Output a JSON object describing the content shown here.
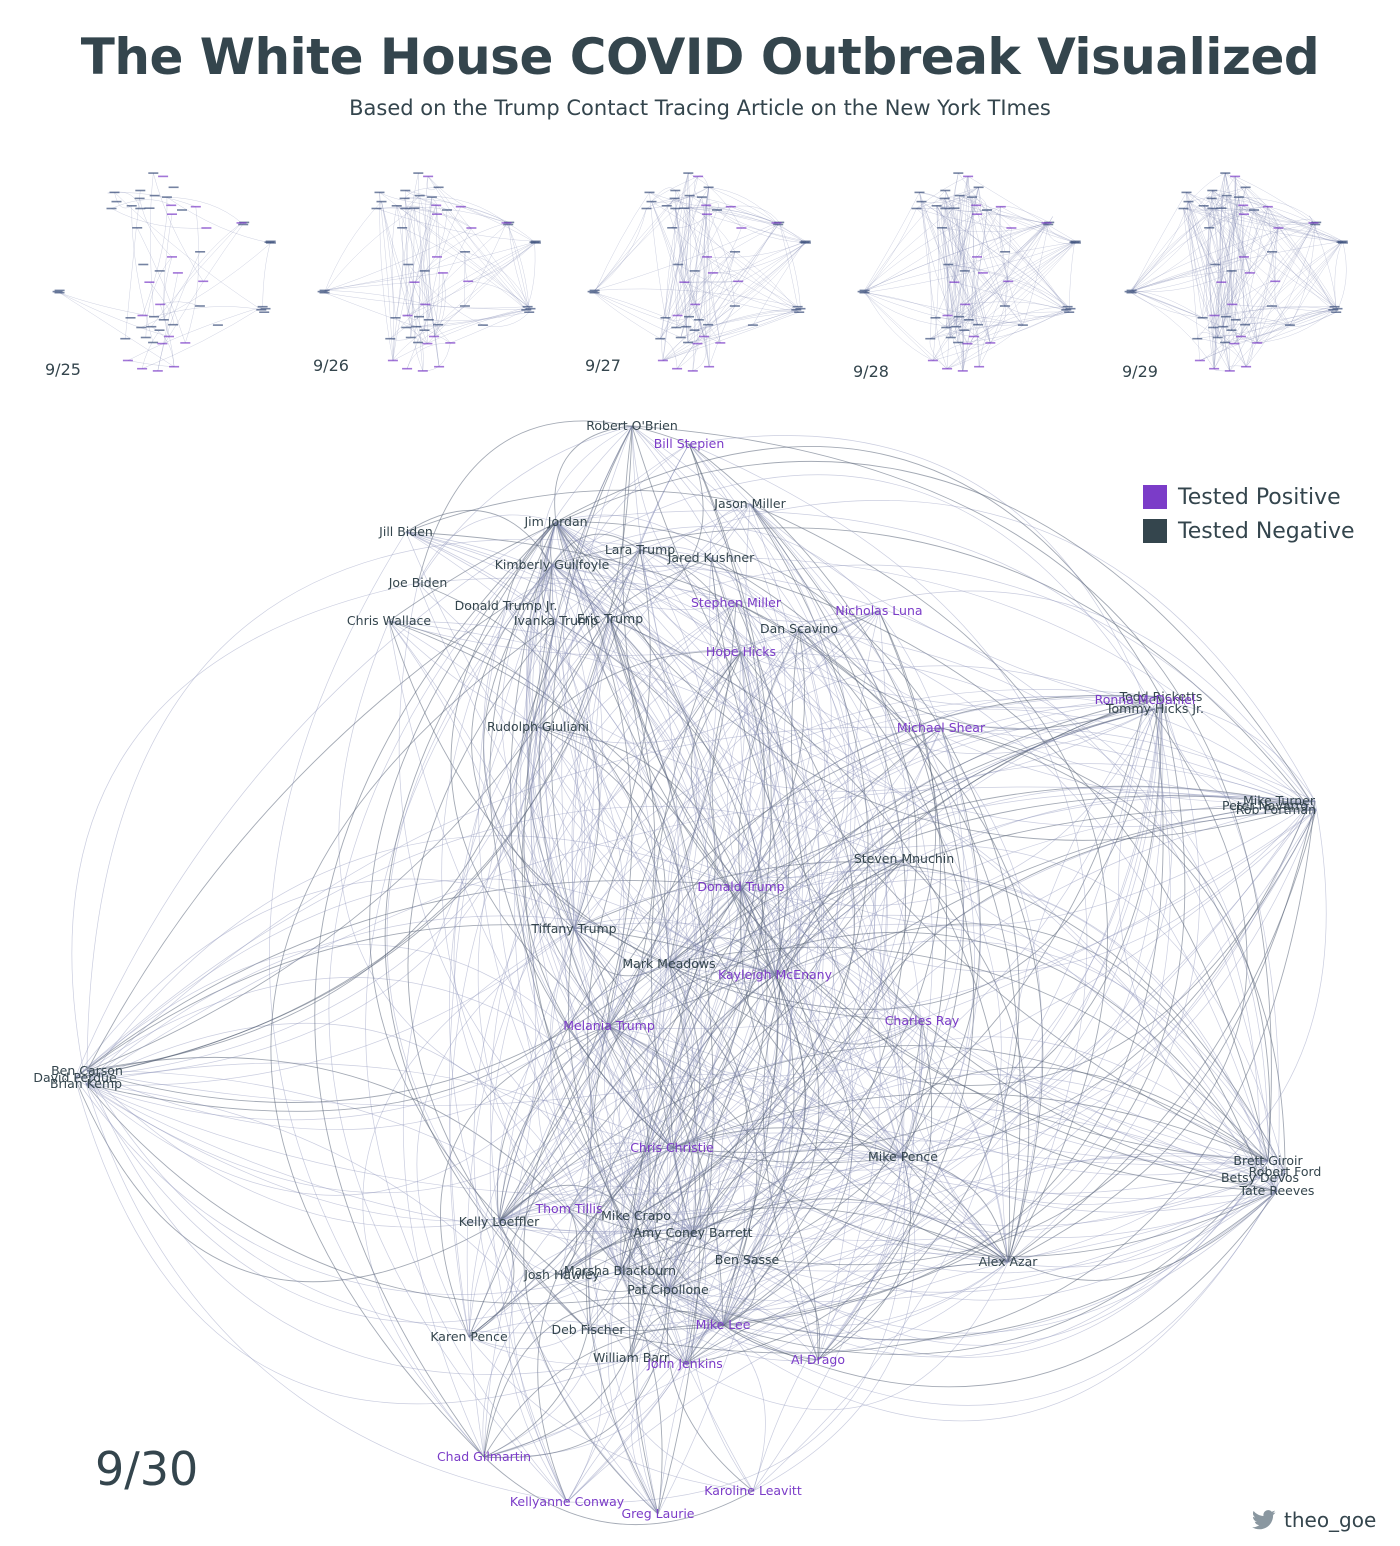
{
  "title": "The White House COVID Outbreak Visualized",
  "subtitle": "Based on the Trump Contact Tracing Article on the New York TImes",
  "colors": {
    "positive": "#7b3cc8",
    "negative": "#34454d",
    "edge": "#8a90b8",
    "text": "#34454d"
  },
  "legend": {
    "positive_label": "Tested Positive",
    "negative_label": "Tested Negative"
  },
  "thumbnails": [
    {
      "date": "9/25"
    },
    {
      "date": "9/26"
    },
    {
      "date": "9/27"
    },
    {
      "date": "9/28"
    },
    {
      "date": "9/29"
    }
  ],
  "main_date": "9/30",
  "credit": {
    "icon": "twitter-icon",
    "handle": "theo_goe"
  },
  "graph": {
    "nodes": [
      {
        "id": "Robert O'Brien",
        "status": "negative"
      },
      {
        "id": "Bill Stepien",
        "status": "positive"
      },
      {
        "id": "Jason Miller",
        "status": "negative"
      },
      {
        "id": "Jill Biden",
        "status": "negative"
      },
      {
        "id": "Jim Jordan",
        "status": "negative"
      },
      {
        "id": "Lara Trump",
        "status": "negative"
      },
      {
        "id": "Jared Kushner",
        "status": "negative"
      },
      {
        "id": "Kimberly Guilfoyle",
        "status": "negative"
      },
      {
        "id": "Joe Biden",
        "status": "negative"
      },
      {
        "id": "Donald Trump Jr.",
        "status": "negative"
      },
      {
        "id": "Ivanka Trump",
        "status": "negative"
      },
      {
        "id": "Eric Trump",
        "status": "negative"
      },
      {
        "id": "Stephen Miller",
        "status": "positive"
      },
      {
        "id": "Nicholas Luna",
        "status": "positive"
      },
      {
        "id": "Chris Wallace",
        "status": "negative"
      },
      {
        "id": "Dan Scavino",
        "status": "negative"
      },
      {
        "id": "Hope Hicks",
        "status": "positive"
      },
      {
        "id": "Todd Ricketts",
        "status": "negative"
      },
      {
        "id": "Ronna McDaniel",
        "status": "positive"
      },
      {
        "id": "Tommy Hicks Jr.",
        "status": "negative"
      },
      {
        "id": "Rudolph Giuliani",
        "status": "negative"
      },
      {
        "id": "Michael Shear",
        "status": "positive"
      },
      {
        "id": "Mike Turner",
        "status": "negative"
      },
      {
        "id": "Peter Navarro",
        "status": "negative"
      },
      {
        "id": "Rob Portman",
        "status": "negative"
      },
      {
        "id": "Steven Mnuchin",
        "status": "negative"
      },
      {
        "id": "Donald Trump",
        "status": "positive"
      },
      {
        "id": "Tiffany Trump",
        "status": "negative"
      },
      {
        "id": "Mark Meadows",
        "status": "negative"
      },
      {
        "id": "Kayleigh McEnany",
        "status": "positive"
      },
      {
        "id": "Charles Ray",
        "status": "positive"
      },
      {
        "id": "Melania Trump",
        "status": "positive"
      },
      {
        "id": "Ben Carson",
        "status": "negative"
      },
      {
        "id": "David Perdue",
        "status": "negative"
      },
      {
        "id": "Brian Kemp",
        "status": "negative"
      },
      {
        "id": "Chris Christie",
        "status": "positive"
      },
      {
        "id": "Mike Pence",
        "status": "negative"
      },
      {
        "id": "Brett Giroir",
        "status": "negative"
      },
      {
        "id": "Robert Ford",
        "status": "negative"
      },
      {
        "id": "Betsy DeVos",
        "status": "negative"
      },
      {
        "id": "Tate Reeves",
        "status": "negative"
      },
      {
        "id": "Thom Tillis",
        "status": "positive"
      },
      {
        "id": "Kelly Loeffler",
        "status": "negative"
      },
      {
        "id": "Mike Crapo",
        "status": "negative"
      },
      {
        "id": "Amy Coney Barrett",
        "status": "negative"
      },
      {
        "id": "Ben Sasse",
        "status": "negative"
      },
      {
        "id": "Alex Azar",
        "status": "negative"
      },
      {
        "id": "Josh Hawley",
        "status": "negative"
      },
      {
        "id": "Marsha Blackburn",
        "status": "negative"
      },
      {
        "id": "Pat Cipollone",
        "status": "negative"
      },
      {
        "id": "Karen Pence",
        "status": "negative"
      },
      {
        "id": "Deb Fischer",
        "status": "negative"
      },
      {
        "id": "Mike Lee",
        "status": "positive"
      },
      {
        "id": "William Barr",
        "status": "negative"
      },
      {
        "id": "John Jenkins",
        "status": "positive"
      },
      {
        "id": "Al Drago",
        "status": "positive"
      },
      {
        "id": "Chad Gilmartin",
        "status": "positive"
      },
      {
        "id": "Kellyanne Conway",
        "status": "positive"
      },
      {
        "id": "Karoline Leavitt",
        "status": "positive"
      },
      {
        "id": "Greg Laurie",
        "status": "positive"
      }
    ]
  }
}
